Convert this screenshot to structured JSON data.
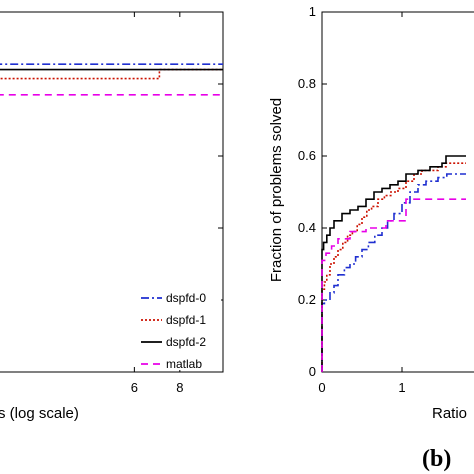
{
  "chart_data": [
    {
      "type": "line",
      "panel": "a",
      "xlabel": "s (log scale)",
      "ylabel": "",
      "xlim": [
        0,
        9.9
      ],
      "ylim": [
        0,
        1
      ],
      "xticks": [
        6,
        8
      ],
      "xtick_labels": [
        "6",
        "8"
      ],
      "step": true,
      "legend_position": "bottom-right",
      "series": [
        {
          "name": "dspfd-0",
          "color": "#1f2fd0",
          "dash": "8 3 2 3",
          "x": [
            0,
            9.9
          ],
          "y": [
            0.855,
            0.855
          ]
        },
        {
          "name": "dspfd-1",
          "color": "#cc1100",
          "dash": "2 2",
          "x": [
            0,
            7.1,
            7.1,
            9.9
          ],
          "y": [
            0.815,
            0.815,
            0.84,
            0.84
          ]
        },
        {
          "name": "dspfd-2",
          "color": "#000000",
          "dash": "",
          "x": [
            0,
            9.9
          ],
          "y": [
            0.84,
            0.84
          ]
        },
        {
          "name": "matlab",
          "color": "#e800e8",
          "dash": "7 5",
          "x": [
            0,
            9.9
          ],
          "y": [
            0.77,
            0.77
          ]
        }
      ]
    },
    {
      "type": "line",
      "panel": "b",
      "xlabel": "Ratio",
      "ylabel": "Fraction of problems solved",
      "xlim": [
        0,
        2
      ],
      "ylim": [
        0,
        1
      ],
      "xticks": [
        0,
        1
      ],
      "xtick_labels": [
        "0",
        "1"
      ],
      "yticks": [
        0,
        0.2,
        0.4,
        0.6,
        0.8,
        1
      ],
      "ytick_labels": [
        "0",
        "0.2",
        "0.4",
        "0.6",
        "0.8",
        "1"
      ],
      "step": true,
      "series": [
        {
          "name": "dspfd-0",
          "color": "#1f2fd0",
          "dash": "8 3 2 3",
          "x": [
            0,
            0.03,
            0.1,
            0.15,
            0.2,
            0.28,
            0.35,
            0.42,
            0.5,
            0.58,
            0.66,
            0.75,
            0.82,
            0.9,
            1.0,
            1.1,
            1.2,
            1.3,
            1.45,
            1.56,
            1.8
          ],
          "y": [
            0.19,
            0.2,
            0.22,
            0.24,
            0.27,
            0.29,
            0.3,
            0.32,
            0.34,
            0.36,
            0.38,
            0.4,
            0.42,
            0.44,
            0.47,
            0.5,
            0.52,
            0.53,
            0.54,
            0.55,
            0.55
          ]
        },
        {
          "name": "dspfd-1",
          "color": "#cc1100",
          "dash": "2 2",
          "x": [
            0,
            0.03,
            0.06,
            0.1,
            0.15,
            0.2,
            0.26,
            0.32,
            0.38,
            0.44,
            0.5,
            0.56,
            0.62,
            0.7,
            0.78,
            0.86,
            0.95,
            1.05,
            1.15,
            1.25,
            1.35,
            1.45,
            1.55,
            1.8
          ],
          "y": [
            0.23,
            0.25,
            0.27,
            0.3,
            0.32,
            0.34,
            0.36,
            0.38,
            0.39,
            0.41,
            0.43,
            0.45,
            0.46,
            0.48,
            0.49,
            0.5,
            0.51,
            0.53,
            0.55,
            0.56,
            0.56,
            0.57,
            0.58,
            0.58
          ]
        },
        {
          "name": "dspfd-2",
          "color": "#000000",
          "dash": "",
          "x": [
            0,
            0.02,
            0.06,
            0.1,
            0.15,
            0.25,
            0.35,
            0.45,
            0.55,
            0.65,
            0.75,
            0.85,
            0.95,
            1.05,
            1.2,
            1.35,
            1.5,
            1.55,
            1.7,
            1.8
          ],
          "y": [
            0.34,
            0.36,
            0.38,
            0.4,
            0.42,
            0.44,
            0.45,
            0.46,
            0.48,
            0.5,
            0.51,
            0.52,
            0.53,
            0.55,
            0.56,
            0.57,
            0.58,
            0.6,
            0.6,
            0.6
          ]
        },
        {
          "name": "matlab",
          "color": "#e800e8",
          "dash": "7 5",
          "x": [
            0,
            0.05,
            0.12,
            0.2,
            0.35,
            0.55,
            0.8,
            1.05,
            1.3,
            1.8
          ],
          "y": [
            0.31,
            0.33,
            0.35,
            0.37,
            0.39,
            0.4,
            0.42,
            0.48,
            0.48,
            0.48
          ]
        }
      ]
    }
  ],
  "legend": [
    {
      "label": "dspfd-0",
      "color": "#1f2fd0",
      "dash": "8 3 2 3"
    },
    {
      "label": "dspfd-1",
      "color": "#cc1100",
      "dash": "2 2"
    },
    {
      "label": "dspfd-2",
      "color": "#000000",
      "dash": ""
    },
    {
      "label": "matlab",
      "color": "#e800e8",
      "dash": "7 5"
    }
  ],
  "labels": {
    "a_xlabel": "s (log scale)",
    "b_xlabel": "Ratio",
    "b_ylabel": "Fraction of problems solved",
    "panel_b": "(b)"
  }
}
